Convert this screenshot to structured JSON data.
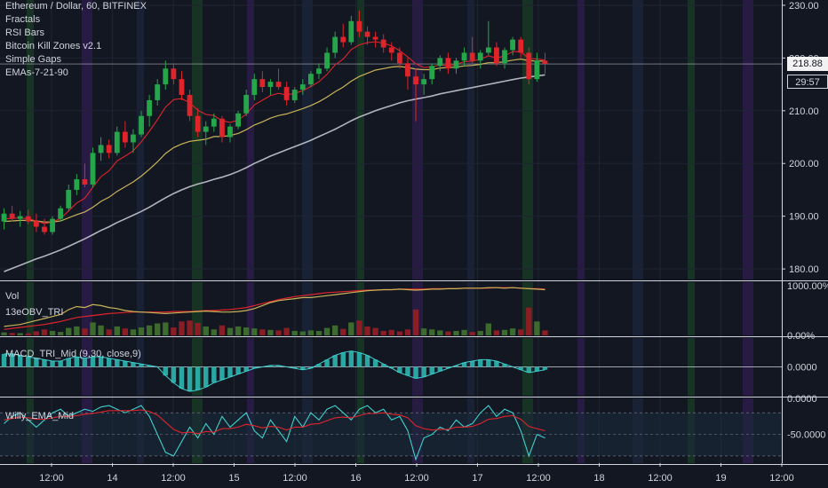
{
  "header": {
    "title": "Ethereum / Dollar, 60, BITFINEX",
    "indicators": [
      "Fractals",
      "RSI Bars",
      "Bitcoin Kill Zones v2.1",
      "Simple Gaps",
      "EMAs-7-21-90"
    ]
  },
  "price_axis": {
    "ticks": [
      "230.00",
      "220.00",
      "210.00",
      "200.00",
      "190.00",
      "180.00"
    ],
    "last_price": "218.88",
    "countdown": "29:57"
  },
  "volume_pane": {
    "labels": [
      "Vol",
      "13eOBV_TRI"
    ],
    "ticks": [
      "1000.00%",
      "0.00%"
    ]
  },
  "macd_pane": {
    "label": "MACD_TRI_Mid (9,30, close,9)",
    "ticks": [
      "0.0000"
    ]
  },
  "willy_pane": {
    "label": "Willy_EMA_Mid",
    "ticks": [
      "0.0000",
      "-50.0000"
    ]
  },
  "time_axis": {
    "labels": [
      "12:00",
      "14",
      "12:00",
      "15",
      "12:00",
      "16",
      "12:00",
      "17",
      "12:00",
      "18",
      "12:00",
      "19",
      "12:00"
    ]
  },
  "chart_data": [
    {
      "type": "candlestick",
      "title": "Ethereum / Dollar, 60, BITFINEX",
      "ylim": [
        178,
        231
      ],
      "ohlc": [
        [
          189.0,
          191.5,
          187.5,
          190.5
        ],
        [
          190.5,
          192.0,
          189.0,
          189.5
        ],
        [
          189.5,
          191.0,
          188.0,
          190.0
        ],
        [
          190.0,
          191.2,
          188.5,
          189.0
        ],
        [
          189.0,
          190.5,
          187.0,
          188.0
        ],
        [
          188.0,
          189.5,
          186.5,
          187.0
        ],
        [
          187.0,
          190.0,
          186.5,
          189.5
        ],
        [
          189.5,
          192.0,
          189.0,
          191.5
        ],
        [
          191.5,
          196.0,
          191.0,
          195.0
        ],
        [
          195.0,
          198.0,
          194.0,
          197.0
        ],
        [
          197.0,
          200.0,
          195.5,
          196.0
        ],
        [
          196.0,
          203.0,
          195.5,
          202.0
        ],
        [
          202.0,
          205.0,
          200.5,
          203.5
        ],
        [
          203.5,
          204.5,
          201.0,
          202.0
        ],
        [
          202.0,
          207.0,
          201.5,
          206.0
        ],
        [
          206.0,
          208.0,
          203.0,
          204.0
        ],
        [
          204.0,
          206.5,
          202.0,
          205.5
        ],
        [
          205.5,
          210.0,
          205.0,
          209.0
        ],
        [
          209.0,
          213.0,
          207.0,
          212.0
        ],
        [
          212.0,
          216.0,
          211.0,
          215.0
        ],
        [
          215.0,
          219.5,
          214.0,
          218.0
        ],
        [
          218.0,
          219.0,
          215.0,
          216.0
        ],
        [
          216.0,
          217.5,
          212.0,
          213.0
        ],
        [
          213.0,
          214.0,
          208.0,
          209.0
        ],
        [
          209.0,
          210.5,
          205.0,
          206.0
        ],
        [
          206.0,
          208.0,
          203.5,
          207.0
        ],
        [
          207.0,
          209.5,
          206.0,
          208.5
        ],
        [
          208.5,
          209.0,
          204.0,
          205.0
        ],
        [
          205.0,
          207.5,
          204.0,
          207.0
        ],
        [
          207.0,
          210.0,
          206.5,
          209.5
        ],
        [
          209.5,
          214.0,
          209.0,
          213.0
        ],
        [
          213.0,
          217.0,
          212.0,
          216.0
        ],
        [
          216.0,
          217.5,
          213.5,
          214.5
        ],
        [
          214.5,
          216.0,
          213.0,
          215.5
        ],
        [
          215.5,
          218.0,
          214.0,
          214.5
        ],
        [
          214.5,
          215.5,
          211.0,
          212.0
        ],
        [
          212.0,
          214.5,
          211.5,
          214.0
        ],
        [
          214.0,
          216.0,
          213.0,
          215.0
        ],
        [
          215.0,
          217.5,
          214.5,
          217.0
        ],
        [
          217.0,
          219.0,
          216.0,
          218.0
        ],
        [
          218.0,
          222.0,
          217.5,
          221.0
        ],
        [
          221.0,
          225.0,
          220.0,
          224.0
        ],
        [
          224.0,
          226.5,
          222.0,
          223.0
        ],
        [
          223.0,
          228.0,
          222.5,
          227.0
        ],
        [
          227.0,
          229.0,
          224.0,
          225.0
        ],
        [
          225.0,
          226.0,
          222.5,
          224.0
        ],
        [
          224.0,
          225.0,
          222.0,
          223.5
        ],
        [
          223.5,
          224.5,
          221.0,
          222.0
        ],
        [
          222.0,
          223.0,
          219.5,
          221.0
        ],
        [
          221.0,
          222.0,
          218.0,
          219.0
        ],
        [
          219.0,
          220.0,
          214.0,
          216.5
        ],
        [
          216.5,
          218.0,
          208.0,
          215.0
        ],
        [
          215.0,
          217.0,
          213.0,
          216.0
        ],
        [
          216.0,
          219.0,
          215.0,
          218.5
        ],
        [
          218.5,
          220.5,
          217.5,
          220.0
        ],
        [
          220.0,
          221.0,
          217.0,
          218.0
        ],
        [
          218.0,
          220.0,
          217.0,
          219.5
        ],
        [
          219.5,
          222.0,
          218.5,
          221.0
        ],
        [
          221.0,
          224.0,
          219.0,
          219.5
        ],
        [
          219.5,
          221.5,
          218.0,
          221.0
        ],
        [
          221.0,
          227.0,
          220.5,
          222.0
        ],
        [
          222.0,
          223.0,
          218.5,
          219.0
        ],
        [
          219.0,
          222.0,
          218.0,
          221.5
        ],
        [
          221.5,
          224.0,
          220.5,
          223.5
        ],
        [
          223.5,
          224.0,
          220.0,
          221.0
        ],
        [
          221.0,
          222.0,
          215.0,
          216.0
        ],
        [
          216.0,
          221.0,
          215.5,
          219.5
        ],
        [
          219.5,
          221.0,
          217.0,
          218.88
        ]
      ],
      "ema7": [
        189.5,
        189.6,
        189.7,
        189.5,
        189.1,
        188.6,
        188.9,
        189.6,
        191.0,
        192.5,
        193.4,
        195.5,
        197.5,
        198.6,
        200.5,
        201.4,
        202.4,
        204.1,
        206.1,
        208.3,
        210.7,
        212.1,
        212.3,
        211.5,
        210.1,
        209.3,
        209.1,
        208.1,
        207.8,
        208.2,
        209.4,
        211.1,
        212.0,
        212.9,
        213.3,
        213.0,
        213.3,
        213.8,
        214.6,
        215.5,
        216.9,
        218.7,
        219.8,
        221.6,
        222.5,
        222.9,
        223.1,
        222.8,
        222.3,
        221.4,
        220.2,
        218.9,
        218.2,
        218.3,
        218.7,
        218.5,
        218.8,
        219.3,
        219.4,
        219.8,
        220.4,
        220.0,
        220.4,
        221.2,
        221.2,
        219.9,
        219.8,
        219.6
      ],
      "ema21": [
        189.0,
        189.1,
        189.2,
        189.2,
        189.1,
        188.9,
        188.9,
        189.1,
        189.7,
        190.3,
        190.8,
        191.7,
        192.8,
        193.6,
        194.7,
        195.6,
        196.5,
        197.6,
        198.9,
        200.3,
        201.9,
        203.0,
        203.7,
        204.2,
        204.4,
        204.6,
        205.1,
        205.1,
        205.3,
        205.7,
        206.4,
        207.3,
        207.9,
        208.6,
        209.1,
        209.4,
        209.9,
        210.4,
        211.0,
        211.7,
        212.6,
        213.6,
        214.5,
        215.6,
        216.5,
        217.1,
        217.7,
        218.0,
        218.3,
        218.4,
        218.2,
        217.9,
        217.8,
        217.8,
        218.1,
        218.2,
        218.3,
        218.5,
        218.6,
        218.8,
        219.1,
        219.1,
        219.3,
        219.6,
        219.8,
        219.5,
        219.4,
        219.4
      ],
      "ema90": [
        179.5,
        180.1,
        180.7,
        181.3,
        181.9,
        182.4,
        183.0,
        183.6,
        184.3,
        185.0,
        185.7,
        186.5,
        187.3,
        188.0,
        188.8,
        189.5,
        190.2,
        190.9,
        191.7,
        192.6,
        193.5,
        194.3,
        195.0,
        195.6,
        196.1,
        196.5,
        197.0,
        197.4,
        197.9,
        198.5,
        199.2,
        200.0,
        200.7,
        201.4,
        202.0,
        202.6,
        203.2,
        203.8,
        204.4,
        205.1,
        205.8,
        206.5,
        207.3,
        208.1,
        208.8,
        209.4,
        210.0,
        210.5,
        211.0,
        211.5,
        211.9,
        212.2,
        212.5,
        212.8,
        213.2,
        213.5,
        213.8,
        214.1,
        214.4,
        214.7,
        215.0,
        215.3,
        215.6,
        215.9,
        216.2,
        216.4,
        216.6,
        216.8
      ]
    },
    {
      "type": "bar",
      "title": "Vol",
      "ylim": [
        0,
        1000
      ],
      "values": [
        60,
        50,
        45,
        40,
        80,
        120,
        90,
        70,
        150,
        180,
        140,
        260,
        200,
        120,
        180,
        140,
        120,
        160,
        200,
        240,
        260,
        160,
        280,
        300,
        250,
        180,
        120,
        200,
        150,
        180,
        160,
        140,
        120,
        110,
        100,
        150,
        90,
        80,
        100,
        90,
        150,
        200,
        130,
        260,
        300,
        180,
        150,
        90,
        110,
        80,
        120,
        520,
        140,
        120,
        100,
        80,
        90,
        110,
        70,
        90,
        240,
        100,
        110,
        140,
        120,
        560,
        280,
        100
      ],
      "obv": [
        180,
        200,
        220,
        260,
        300,
        340,
        380,
        420,
        520,
        580,
        560,
        620,
        600,
        560,
        540,
        500,
        480,
        470,
        460,
        450,
        440,
        450,
        460,
        470,
        480,
        490,
        480,
        470,
        470,
        480,
        500,
        540,
        600,
        660,
        700,
        720,
        740,
        760,
        760,
        780,
        800,
        820,
        840,
        860,
        880,
        900,
        910,
        920,
        920,
        930,
        920,
        910,
        920,
        930,
        930,
        940,
        940,
        950,
        950,
        950,
        960,
        960,
        950,
        960,
        950,
        940,
        930,
        920
      ],
      "signal": [
        120,
        140,
        160,
        180,
        200,
        220,
        250,
        280,
        320,
        360,
        380,
        400,
        420,
        440,
        450,
        460,
        470,
        470,
        470,
        470,
        470,
        480,
        480,
        480,
        490,
        500,
        500,
        510,
        520,
        540,
        560,
        600,
        640,
        680,
        720,
        750,
        780,
        800,
        820,
        840,
        860,
        870,
        880,
        890,
        900,
        910,
        910,
        920,
        920,
        930,
        930,
        930,
        930,
        940,
        940,
        940,
        940,
        950,
        950,
        950,
        950,
        960,
        960,
        960,
        950,
        940,
        940,
        930
      ]
    },
    {
      "type": "bar",
      "title": "MACD_TRI_Mid (9,30, close,9)",
      "ylim": [
        -1,
        1
      ],
      "values": [
        0.45,
        0.45,
        0.4,
        0.35,
        0.3,
        0.25,
        0.2,
        0.2,
        0.3,
        0.35,
        0.3,
        0.35,
        0.35,
        0.3,
        0.25,
        0.2,
        0.15,
        0.1,
        0.05,
        0.0,
        -0.3,
        -0.55,
        -0.75,
        -0.85,
        -0.8,
        -0.7,
        -0.55,
        -0.45,
        -0.35,
        -0.25,
        -0.15,
        -0.05,
        0.0,
        0.05,
        0.05,
        0.0,
        -0.05,
        -0.1,
        -0.05,
        0.1,
        0.25,
        0.4,
        0.5,
        0.55,
        0.5,
        0.4,
        0.25,
        0.1,
        -0.05,
        -0.2,
        -0.3,
        -0.4,
        -0.35,
        -0.25,
        -0.15,
        -0.05,
        0.05,
        0.15,
        0.2,
        0.25,
        0.25,
        0.2,
        0.1,
        0.0,
        -0.1,
        -0.2,
        -0.15,
        -0.1
      ],
      "line": [
        0.45,
        0.45,
        0.4,
        0.35,
        0.3,
        0.25,
        0.2,
        0.2,
        0.3,
        0.35,
        0.3,
        0.35,
        0.35,
        0.3,
        0.25,
        0.2,
        0.15,
        0.1,
        0.05,
        0.0,
        -0.3,
        -0.55,
        -0.75,
        -0.85,
        -0.8,
        -0.7,
        -0.55,
        -0.45,
        -0.35,
        -0.25,
        -0.15,
        -0.05,
        0.0,
        0.05,
        0.05,
        0.0,
        -0.05,
        -0.1,
        -0.05,
        0.1,
        0.25,
        0.4,
        0.5,
        0.55,
        0.5,
        0.4,
        0.25,
        0.1,
        -0.05,
        -0.2,
        -0.3,
        -0.4,
        -0.35,
        -0.25,
        -0.15,
        -0.05,
        0.05,
        0.15,
        0.2,
        0.25,
        0.25,
        0.2,
        0.1,
        0.0,
        -0.1,
        -0.2,
        -0.15,
        -0.1
      ]
    },
    {
      "type": "line",
      "title": "Willy_EMA_Mid",
      "ylim": [
        -90,
        0
      ],
      "x_count": 68,
      "series": [
        {
          "values": [
            -35,
            -25,
            -20,
            -30,
            -40,
            -30,
            -20,
            -15,
            -25,
            -20,
            -15,
            -18,
            -12,
            -10,
            -15,
            -20,
            -15,
            -10,
            -25,
            -50,
            -75,
            -80,
            -60,
            -40,
            -55,
            -35,
            -50,
            -25,
            -40,
            -30,
            -20,
            -45,
            -55,
            -30,
            -45,
            -60,
            -25,
            -40,
            -20,
            -30,
            -15,
            -10,
            -20,
            -30,
            -15,
            -10,
            -20,
            -15,
            -30,
            -25,
            -45,
            -85,
            -55,
            -50,
            -40,
            -45,
            -30,
            -40,
            -35,
            -20,
            -10,
            -25,
            -15,
            -20,
            -45,
            -80,
            -50,
            -55
          ]
        },
        {
          "values": [
            -30,
            -28,
            -26,
            -27,
            -29,
            -29,
            -27,
            -25,
            -25,
            -24,
            -22,
            -21,
            -19,
            -17,
            -17,
            -17,
            -17,
            -16,
            -18,
            -23,
            -33,
            -43,
            -48,
            -47,
            -49,
            -46,
            -47,
            -42,
            -42,
            -40,
            -36,
            -38,
            -41,
            -39,
            -40,
            -44,
            -40,
            -40,
            -36,
            -35,
            -31,
            -27,
            -26,
            -27,
            -24,
            -21,
            -21,
            -20,
            -22,
            -23,
            -27,
            -38,
            -42,
            -44,
            -43,
            -43,
            -40,
            -40,
            -39,
            -35,
            -29,
            -28,
            -25,
            -24,
            -29,
            -39,
            -42,
            -45
          ]
        }
      ]
    }
  ]
}
